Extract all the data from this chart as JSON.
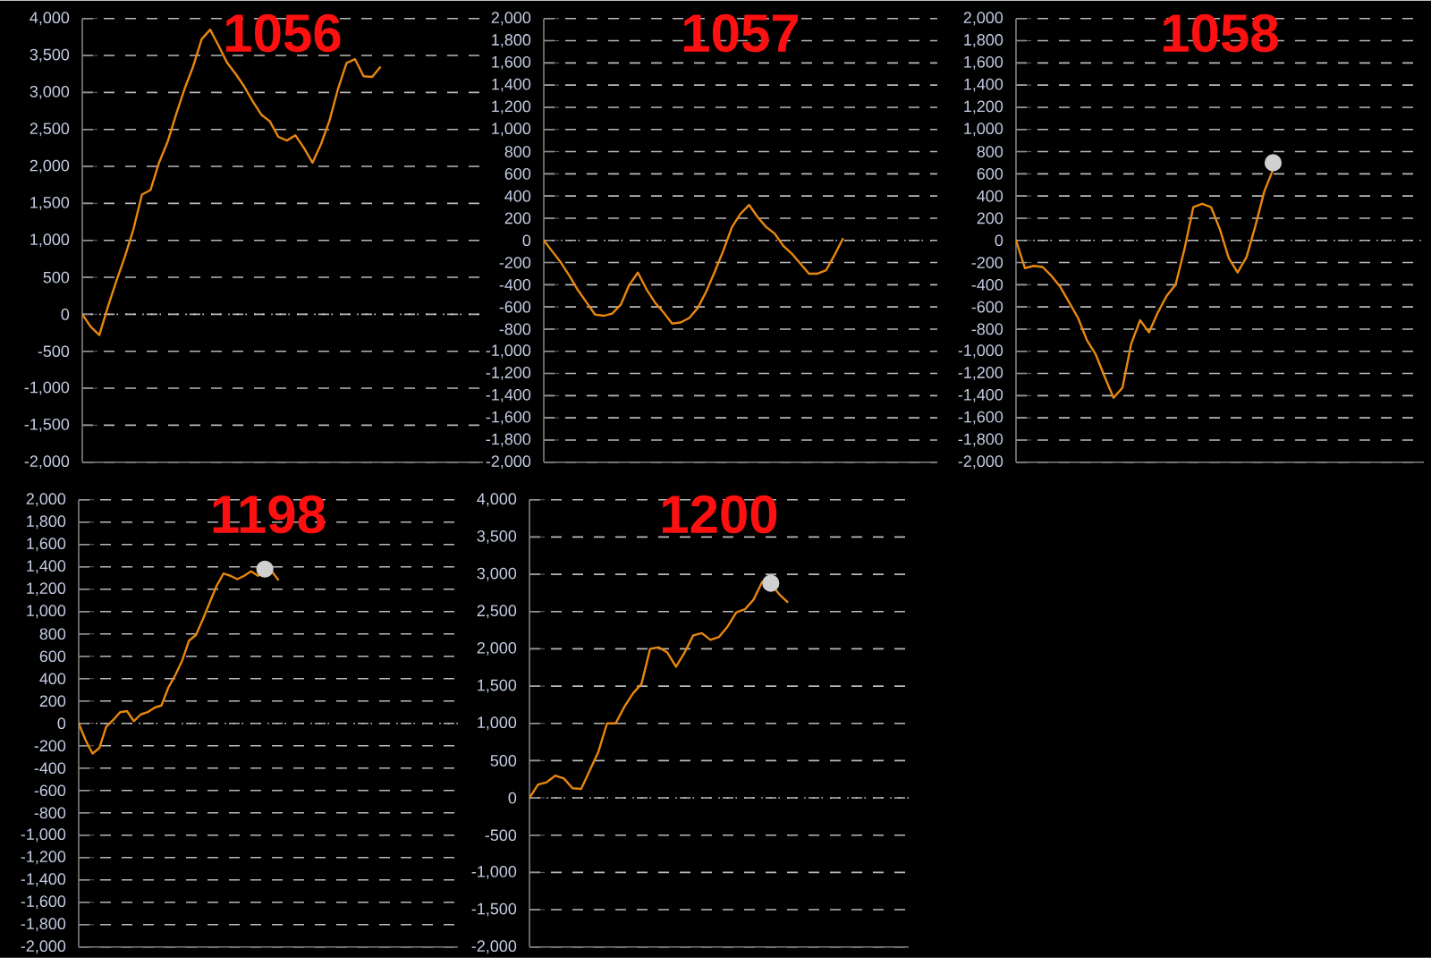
{
  "chart_data": [
    {
      "type": "line",
      "title": "1056",
      "tick_labels": "y",
      "grid": "y",
      "categories": [
        null,
        null,
        null,
        null,
        null,
        null,
        null,
        null,
        null,
        null,
        null,
        null,
        null,
        null,
        null,
        null,
        null,
        null,
        null,
        null,
        null,
        null,
        null,
        null,
        null,
        null,
        null,
        null,
        null,
        null,
        null,
        null,
        null,
        null,
        null,
        null,
        null,
        null,
        null,
        null,
        null,
        null,
        null,
        null,
        null,
        null,
        null,
        null
      ],
      "series": [
        {
          "color": "#e8870e",
          "values": [
            0,
            -170,
            -280,
            100,
            450,
            780,
            1150,
            1620,
            1680,
            2050,
            2330,
            2700,
            3050,
            3350,
            3720,
            3850,
            3630,
            3400,
            3250,
            3080,
            2880,
            2700,
            2610,
            2400,
            2350,
            2420,
            2250,
            2050,
            2300,
            2620,
            3050,
            3400,
            3450,
            3220,
            3210,
            3350,
            null,
            null,
            null,
            null,
            null,
            null,
            null,
            null,
            null,
            null,
            null,
            null
          ]
        }
      ],
      "ylim": [
        -2000,
        4000
      ],
      "yticks": [
        {
          "value": -2000,
          "label": "-2,000"
        },
        {
          "value": -1500,
          "label": "-1,500"
        },
        {
          "value": -1000,
          "label": "-1,000"
        },
        -500,
        0,
        500,
        {
          "value": 1000,
          "label": "1,000"
        },
        {
          "value": 1500,
          "label": "1,500"
        },
        {
          "value": 2000,
          "label": "2,000"
        },
        {
          "value": 2500,
          "label": "2,500"
        },
        {
          "value": 3000,
          "label": "3,000"
        },
        {
          "value": 3500,
          "label": "3,500"
        },
        {
          "value": 4000,
          "label": "4,000"
        }
      ],
      "ref_lines": [
        {
          "axis": "y",
          "value": 0,
          "color": "#cccccc",
          "line_style": "dotted"
        }
      ]
    },
    {
      "type": "line",
      "title": "1057",
      "tick_labels": "y",
      "grid": "y",
      "categories": [
        null,
        null,
        null,
        null,
        null,
        null,
        null,
        null,
        null,
        null,
        null,
        null,
        null,
        null,
        null,
        null,
        null,
        null,
        null,
        null,
        null,
        null,
        null,
        null,
        null,
        null,
        null,
        null,
        null,
        null,
        null,
        null,
        null,
        null,
        null,
        null,
        null,
        null,
        null,
        null,
        null,
        null,
        null,
        null,
        null,
        null,
        null
      ],
      "series": [
        {
          "color": "#e8870e",
          "values": [
            0,
            -100,
            -200,
            -320,
            -450,
            -560,
            -670,
            -680,
            -660,
            -580,
            -400,
            -290,
            -440,
            -560,
            -650,
            -750,
            -740,
            -700,
            -610,
            -460,
            -280,
            -90,
            120,
            240,
            320,
            210,
            120,
            60,
            -50,
            -120,
            -210,
            -300,
            -300,
            -270,
            -130,
            20,
            null,
            null,
            null,
            null,
            null,
            null,
            null,
            null,
            null,
            null,
            null
          ]
        }
      ],
      "ylim": [
        -2000,
        2000
      ],
      "yticks": [
        {
          "value": -2000,
          "label": "-2,000"
        },
        {
          "value": -1800,
          "label": "-1,800"
        },
        {
          "value": -1600,
          "label": "-1,600"
        },
        {
          "value": -1400,
          "label": "-1,400"
        },
        {
          "value": -1200,
          "label": "-1,200"
        },
        {
          "value": -1000,
          "label": "-1,000"
        },
        -800,
        -600,
        -400,
        -200,
        0,
        200,
        400,
        600,
        800,
        {
          "value": 1000,
          "label": "1,000"
        },
        {
          "value": 1200,
          "label": "1,200"
        },
        {
          "value": 1400,
          "label": "1,400"
        },
        {
          "value": 1600,
          "label": "1,600"
        },
        {
          "value": 1800,
          "label": "1,800"
        },
        {
          "value": 2000,
          "label": "2,000"
        }
      ],
      "ref_lines": [
        {
          "axis": "y",
          "value": 0,
          "color": "#cccccc",
          "line_style": "dotted"
        }
      ]
    },
    {
      "type": "line",
      "title": "1058",
      "tick_labels": "y",
      "grid": "y",
      "categories": [
        null,
        null,
        null,
        null,
        null,
        null,
        null,
        null,
        null,
        null,
        null,
        null,
        null,
        null,
        null,
        null,
        null,
        null,
        null,
        null,
        null,
        null,
        null,
        null,
        null,
        null,
        null,
        null,
        null,
        null,
        null,
        null,
        null,
        null,
        null,
        null,
        null,
        null,
        null,
        null,
        null,
        null,
        null,
        null,
        null,
        null,
        null
      ],
      "series": [
        {
          "color": "#e8870e",
          "values": [
            0,
            -250,
            -230,
            -240,
            -320,
            -420,
            -560,
            -700,
            -900,
            -1030,
            -1230,
            -1420,
            -1330,
            -930,
            -720,
            -830,
            -650,
            -500,
            -400,
            -80,
            300,
            330,
            300,
            100,
            -160,
            -290,
            -150,
            130,
            440,
            640,
            null,
            null,
            null,
            null,
            null,
            null,
            null,
            null,
            null,
            null,
            null,
            null,
            null,
            null,
            null,
            null,
            null
          ]
        },
        {
          "type": "scatter",
          "marker": "circle",
          "color": "#d0d0d0",
          "values": [
            null,
            null,
            null,
            null,
            null,
            null,
            null,
            null,
            null,
            null,
            null,
            null,
            null,
            null,
            null,
            null,
            null,
            null,
            null,
            null,
            null,
            null,
            null,
            null,
            null,
            null,
            null,
            null,
            null,
            700,
            null,
            null,
            null,
            null,
            null,
            null,
            null,
            null,
            null,
            null,
            null,
            null,
            null,
            null,
            null,
            null,
            null
          ]
        }
      ],
      "ylim": [
        -2000,
        2000
      ],
      "yticks": [
        {
          "value": -2000,
          "label": "-2,000"
        },
        {
          "value": -1800,
          "label": "-1,800"
        },
        {
          "value": -1600,
          "label": "-1,600"
        },
        {
          "value": -1400,
          "label": "-1,400"
        },
        {
          "value": -1200,
          "label": "-1,200"
        },
        {
          "value": -1000,
          "label": "-1,000"
        },
        -800,
        -600,
        -400,
        -200,
        0,
        200,
        400,
        600,
        800,
        {
          "value": 1000,
          "label": "1,000"
        },
        {
          "value": 1200,
          "label": "1,200"
        },
        {
          "value": 1400,
          "label": "1,400"
        },
        {
          "value": 1600,
          "label": "1,600"
        },
        {
          "value": 1800,
          "label": "1,800"
        },
        {
          "value": 2000,
          "label": "2,000"
        }
      ],
      "ref_lines": [
        {
          "axis": "y",
          "value": 0,
          "color": "#cccccc",
          "line_style": "dotted"
        }
      ]
    },
    {
      "type": "line",
      "title": "1198",
      "tick_labels": "y",
      "grid": "y",
      "categories": [
        null,
        null,
        null,
        null,
        null,
        null,
        null,
        null,
        null,
        null,
        null,
        null,
        null,
        null,
        null,
        null,
        null,
        null,
        null,
        null,
        null,
        null,
        null,
        null,
        null,
        null,
        null,
        null,
        null,
        null,
        null,
        null,
        null,
        null,
        null,
        null,
        null,
        null,
        null,
        null,
        null,
        null,
        null,
        null,
        null,
        null,
        null,
        null,
        null,
        null,
        null,
        null,
        null,
        null,
        null,
        null
      ],
      "series": [
        {
          "color": "#e8870e",
          "values": [
            0,
            -150,
            -270,
            -220,
            -30,
            30,
            100,
            110,
            20,
            80,
            100,
            140,
            160,
            320,
            430,
            560,
            740,
            790,
            930,
            1080,
            1230,
            1340,
            1320,
            1290,
            1320,
            1360,
            1320,
            1370,
            1360,
            1280,
            null,
            null,
            null,
            null,
            null,
            null,
            null,
            null,
            null,
            null,
            null,
            null,
            null,
            null,
            null,
            null,
            null,
            null,
            null,
            null,
            null,
            null,
            null,
            null,
            null,
            null
          ]
        },
        {
          "type": "scatter",
          "marker": "circle",
          "color": "#d0d0d0",
          "values": [
            null,
            null,
            null,
            null,
            null,
            null,
            null,
            null,
            null,
            null,
            null,
            null,
            null,
            null,
            null,
            null,
            null,
            null,
            null,
            null,
            null,
            null,
            null,
            null,
            null,
            null,
            null,
            1380,
            null,
            null,
            null,
            null,
            null,
            null,
            null,
            null,
            null,
            null,
            null,
            null,
            null,
            null,
            null,
            null,
            null,
            null,
            null,
            null,
            null,
            null,
            null,
            null,
            null,
            null,
            null,
            null
          ]
        }
      ],
      "ylim": [
        -2000,
        2000
      ],
      "yticks": [
        {
          "value": -2000,
          "label": "-2,000"
        },
        {
          "value": -1800,
          "label": "-1,800"
        },
        {
          "value": -1600,
          "label": "-1,600"
        },
        {
          "value": -1400,
          "label": "-1,400"
        },
        {
          "value": -1200,
          "label": "-1,200"
        },
        {
          "value": -1000,
          "label": "-1,000"
        },
        -800,
        -600,
        -400,
        -200,
        0,
        200,
        400,
        600,
        800,
        {
          "value": 1000,
          "label": "1,000"
        },
        {
          "value": 1200,
          "label": "1,200"
        },
        {
          "value": 1400,
          "label": "1,400"
        },
        {
          "value": 1600,
          "label": "1,600"
        },
        {
          "value": 1800,
          "label": "1,800"
        },
        {
          "value": 2000,
          "label": "2,000"
        }
      ],
      "ref_lines": [
        {
          "axis": "y",
          "value": 0,
          "color": "#cccccc",
          "line_style": "dotted"
        }
      ]
    },
    {
      "type": "line",
      "title": "1200",
      "tick_labels": "y",
      "grid": "y",
      "categories": [
        null,
        null,
        null,
        null,
        null,
        null,
        null,
        null,
        null,
        null,
        null,
        null,
        null,
        null,
        null,
        null,
        null,
        null,
        null,
        null,
        null,
        null,
        null,
        null,
        null,
        null,
        null,
        null,
        null,
        null,
        null,
        null,
        null,
        null,
        null,
        null,
        null,
        null,
        null,
        null,
        null,
        null,
        null,
        null,
        null
      ],
      "series": [
        {
          "color": "#e8870e",
          "values": [
            0,
            180,
            210,
            300,
            260,
            130,
            120,
            370,
            620,
            1000,
            1000,
            1220,
            1400,
            1530,
            2000,
            2020,
            1950,
            1760,
            1950,
            2180,
            2210,
            2120,
            2160,
            2300,
            2490,
            2530,
            2660,
            2900,
            2870,
            2730,
            2620,
            null,
            null,
            null,
            null,
            null,
            null,
            null,
            null,
            null,
            null,
            null,
            null,
            null,
            null
          ]
        },
        {
          "type": "scatter",
          "marker": "circle",
          "color": "#d0d0d0",
          "values": [
            null,
            null,
            null,
            null,
            null,
            null,
            null,
            null,
            null,
            null,
            null,
            null,
            null,
            null,
            null,
            null,
            null,
            null,
            null,
            null,
            null,
            null,
            null,
            null,
            null,
            null,
            null,
            null,
            2880,
            null,
            null,
            null,
            null,
            null,
            null,
            null,
            null,
            null,
            null,
            null,
            null,
            null,
            null,
            null,
            null
          ]
        }
      ],
      "ylim": [
        -2000,
        4000
      ],
      "yticks": [
        {
          "value": -2000,
          "label": "-2,000"
        },
        {
          "value": -1500,
          "label": "-1,500"
        },
        {
          "value": -1000,
          "label": "-1,000"
        },
        -500,
        0,
        500,
        {
          "value": 1000,
          "label": "1,000"
        },
        {
          "value": 1500,
          "label": "1,500"
        },
        {
          "value": 2000,
          "label": "2,000"
        },
        {
          "value": 2500,
          "label": "2,500"
        },
        {
          "value": 3000,
          "label": "3,000"
        },
        {
          "value": 3500,
          "label": "3,500"
        },
        {
          "value": 4000,
          "label": "4,000"
        }
      ],
      "ref_lines": [
        {
          "axis": "y",
          "value": 0,
          "color": "#cccccc",
          "line_style": "dotted"
        }
      ]
    }
  ]
}
